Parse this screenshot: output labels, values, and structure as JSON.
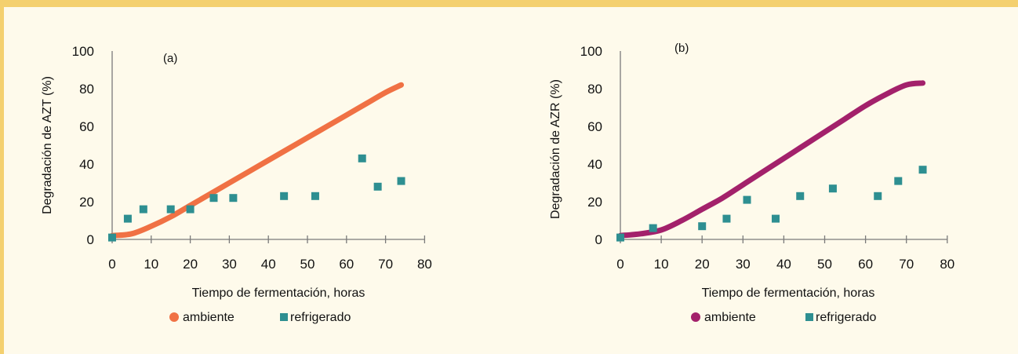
{
  "chart_data": [
    {
      "type": "scatter",
      "panel_label": "(a)",
      "xlabel": "Tiempo de fermentación, horas",
      "ylabel": "Degradación de AZT (%)",
      "xlim": [
        0,
        80
      ],
      "ylim": [
        0,
        100
      ],
      "xticks": [
        "0",
        "10",
        "20",
        "30",
        "40",
        "50",
        "60",
        "70",
        "80"
      ],
      "yticks": [
        "0",
        "20",
        "40",
        "60",
        "80",
        "100"
      ],
      "grid": false,
      "legend_position": "bottom",
      "series": [
        {
          "name": "ambiente",
          "kind": "line",
          "color": "#f07144",
          "x": [
            0,
            5,
            10,
            15,
            20,
            25,
            30,
            35,
            40,
            45,
            50,
            55,
            60,
            65,
            70,
            74
          ],
          "y": [
            2,
            3,
            7,
            12,
            18,
            24,
            30,
            36,
            42,
            48,
            54,
            60,
            66,
            72,
            78,
            82
          ]
        },
        {
          "name": "refrigerado",
          "kind": "markers",
          "color": "#2e8f91",
          "x": [
            0,
            4,
            8,
            15,
            20,
            26,
            31,
            44,
            52,
            64,
            68,
            74
          ],
          "y": [
            1,
            11,
            16,
            16,
            16,
            22,
            22,
            23,
            23,
            43,
            28,
            31
          ]
        }
      ]
    },
    {
      "type": "scatter",
      "panel_label": "(b)",
      "xlabel": "Tiempo de fermentación, horas",
      "ylabel": "Degradación de AZR (%)",
      "xlim": [
        0,
        80
      ],
      "ylim": [
        0,
        100
      ],
      "xticks": [
        "0",
        "10",
        "20",
        "30",
        "40",
        "50",
        "60",
        "70",
        "80"
      ],
      "yticks": [
        "0",
        "20",
        "40",
        "60",
        "80",
        "100"
      ],
      "grid": false,
      "legend_position": "bottom",
      "series": [
        {
          "name": "ambiente",
          "kind": "line",
          "color": "#a3216b",
          "x": [
            0,
            5,
            10,
            15,
            20,
            25,
            30,
            35,
            40,
            45,
            50,
            55,
            60,
            65,
            70,
            74
          ],
          "y": [
            2,
            3,
            5,
            10,
            16,
            22,
            29,
            36,
            43,
            50,
            57,
            64,
            71,
            77,
            82,
            83
          ]
        },
        {
          "name": "refrigerado",
          "kind": "markers",
          "color": "#2e8f91",
          "x": [
            0,
            8,
            20,
            26,
            31,
            38,
            44,
            52,
            63,
            68,
            74
          ],
          "y": [
            1,
            6,
            7,
            11,
            21,
            11,
            23,
            27,
            23,
            31,
            37
          ]
        }
      ]
    }
  ]
}
